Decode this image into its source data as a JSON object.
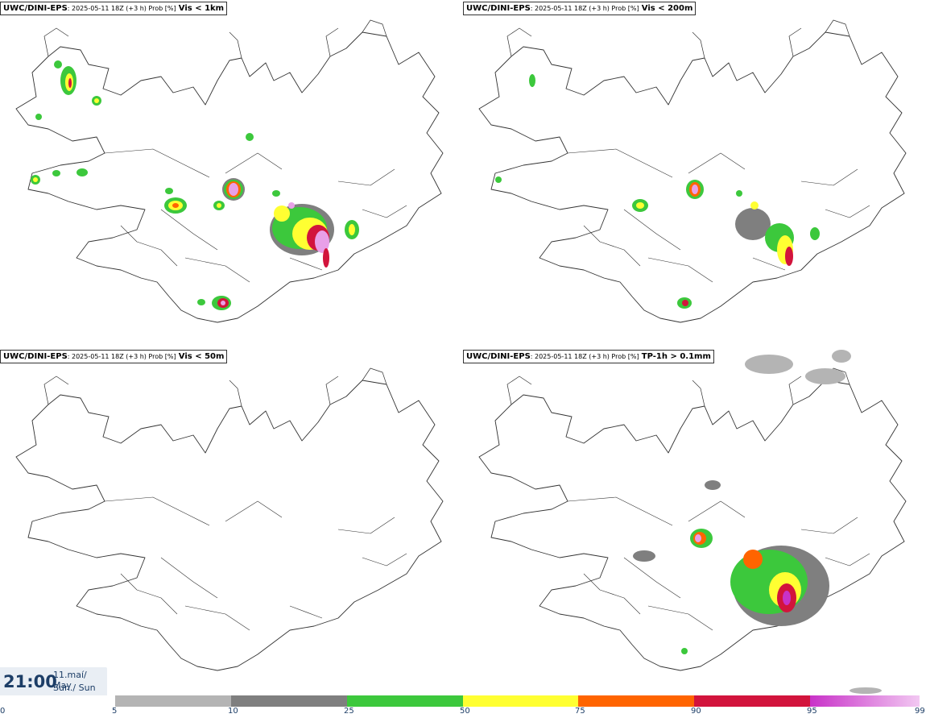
{
  "panels": [
    {
      "model": "UWC/DINI-EPS",
      "meta": ": 2025-05-11 18Z (+3 h) Prob [%]",
      "param": "Vis < 1km"
    },
    {
      "model": "UWC/DINI-EPS",
      "meta": ": 2025-05-11 18Z (+3 h) Prob [%]",
      "param": "Vis < 200m"
    },
    {
      "model": "UWC/DINI-EPS",
      "meta": ": 2025-05-11 18Z (+3 h) Prob [%]",
      "param": "Vis < 50m"
    },
    {
      "model": "UWC/DINI-EPS",
      "meta": ": 2025-05-11 18Z (+3 h) Prob [%]",
      "param": "TP-1h > 0.1mm"
    }
  ],
  "clock": {
    "time": "21:00",
    "date_line1": "11.maí/ May",
    "date_line2": "Sun./ Sun"
  },
  "legend": {
    "ticks": [
      "0",
      "5",
      "10",
      "25",
      "50",
      "75",
      "90",
      "95",
      "99"
    ],
    "colors": [
      "#ffffff",
      "#b4b4b4",
      "#7f7f7f",
      "#3cc83c",
      "#ffff32",
      "#ff6400",
      "#d2143c",
      "#c832c8"
    ]
  },
  "colors": {
    "coast": "#333333",
    "background": "#ffffff"
  }
}
